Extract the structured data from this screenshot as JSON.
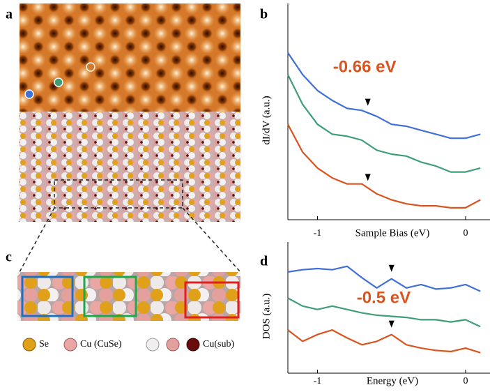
{
  "panel_labels": {
    "a": "a",
    "b": "b",
    "c": "c",
    "d": "d"
  },
  "legend": {
    "items": [
      "Se",
      "Cu (CuSe)",
      "Cu(sub)"
    ]
  },
  "chart_data": [
    {
      "type": "line",
      "ylabel": "dI/dV (a.u.)",
      "xlabel": "Sample Bias (eV)",
      "annotation": {
        "text": "-0.66 eV",
        "x": -0.66
      },
      "x": [
        -1.2,
        -1.1,
        -1.0,
        -0.9,
        -0.8,
        -0.7,
        -0.6,
        -0.5,
        -0.4,
        -0.3,
        -0.2,
        -0.1,
        0,
        0.1
      ],
      "xlim": [
        -1.2,
        0.165
      ],
      "xticks": [
        -1,
        0
      ],
      "ylim": [
        0,
        10
      ],
      "series": [
        {
          "color": "#3f6fd8",
          "values": [
            8.4,
            7.3,
            6.5,
            6.0,
            5.6,
            5.5,
            5.2,
            4.8,
            4.7,
            4.5,
            4.3,
            4.1,
            4.1,
            4.3
          ]
        },
        {
          "color": "#3e9e78",
          "values": [
            7.3,
            5.8,
            4.8,
            4.3,
            4.2,
            4.0,
            3.5,
            3.3,
            3.2,
            2.9,
            2.7,
            2.4,
            2.4,
            2.6
          ]
        },
        {
          "color": "#d9541e",
          "values": [
            4.8,
            3.4,
            2.6,
            2.1,
            1.8,
            1.8,
            1.3,
            1.0,
            0.8,
            0.7,
            0.7,
            0.6,
            0.6,
            1.0
          ]
        }
      ]
    },
    {
      "type": "line",
      "ylabel": "DOS (a.u.)",
      "xlabel": "Energy (eV)",
      "annotation": {
        "text": "-0.5 eV",
        "x": -0.5
      },
      "x": [
        -1.2,
        -1.1,
        -1.0,
        -0.9,
        -0.8,
        -0.7,
        -0.6,
        -0.5,
        -0.4,
        -0.3,
        -0.2,
        -0.1,
        0,
        0.1
      ],
      "xlim": [
        -1.2,
        0.165
      ],
      "xticks": [
        -1,
        0
      ],
      "ylim": [
        0,
        10
      ],
      "series": [
        {
          "color": "#3f6fd8",
          "values": [
            8.9,
            9.1,
            9.2,
            9.1,
            9.4,
            8.4,
            7.5,
            8.3,
            7.5,
            7.8,
            7.4,
            7.5,
            7.8,
            7.2
          ]
        },
        {
          "color": "#3e9e78",
          "values": [
            6.6,
            5.9,
            5.6,
            5.9,
            5.6,
            5.3,
            5.1,
            5.0,
            4.9,
            4.7,
            4.7,
            4.5,
            4.7,
            4.1
          ]
        },
        {
          "color": "#d9541e",
          "values": [
            3.8,
            2.8,
            3.4,
            3.8,
            3.1,
            2.5,
            2.8,
            3.4,
            2.5,
            2.2,
            2.0,
            1.9,
            2.2,
            1.8
          ]
        }
      ]
    }
  ]
}
